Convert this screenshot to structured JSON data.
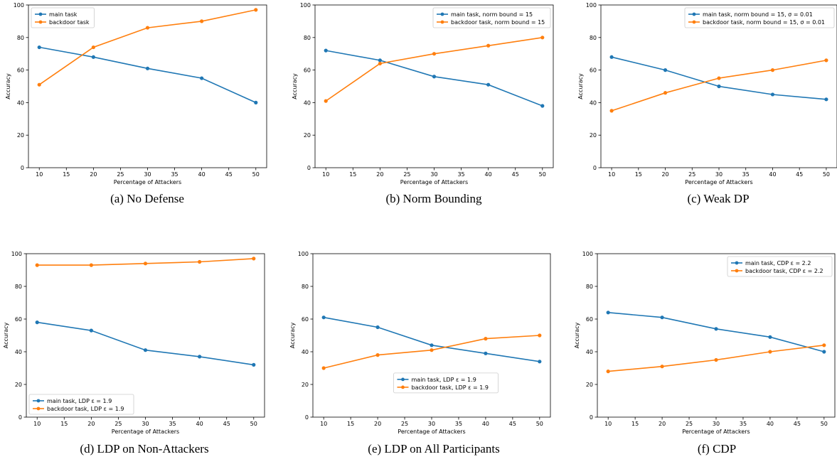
{
  "colors": {
    "main": "#1f77b4",
    "backdoor": "#ff7f0e"
  },
  "chart_data": [
    {
      "type": "line",
      "caption": "(a)  No Defense",
      "xlabel": "Percentage of Attackers",
      "ylabel": "Accuracy",
      "xlim": [
        8,
        52
      ],
      "ylim": [
        0,
        100
      ],
      "xticks": [
        10,
        15,
        20,
        25,
        30,
        35,
        40,
        45,
        50
      ],
      "yticks": [
        0,
        20,
        40,
        60,
        80,
        100
      ],
      "legend_position": "top-left",
      "x": [
        10,
        20,
        30,
        40,
        50
      ],
      "series": [
        {
          "name": "main task",
          "values": [
            74,
            68,
            61,
            55,
            40
          ]
        },
        {
          "name": "backdoor task",
          "values": [
            51,
            74,
            86,
            90,
            97
          ]
        }
      ]
    },
    {
      "type": "line",
      "caption": "(b)  Norm Bounding",
      "xlabel": "Percentage of Attackers",
      "ylabel": "Accuracy",
      "xlim": [
        8,
        52
      ],
      "ylim": [
        0,
        100
      ],
      "xticks": [
        10,
        15,
        20,
        25,
        30,
        35,
        40,
        45,
        50
      ],
      "yticks": [
        0,
        20,
        40,
        60,
        80,
        100
      ],
      "legend_position": "top-right",
      "x": [
        10,
        20,
        30,
        40,
        50
      ],
      "series": [
        {
          "name": "main task, norm bound = 15",
          "values": [
            72,
            66,
            56,
            51,
            38
          ]
        },
        {
          "name": "backdoor task, norm bound = 15",
          "values": [
            41,
            64,
            70,
            75,
            80
          ]
        }
      ]
    },
    {
      "type": "line",
      "caption": "(c)  Weak DP",
      "xlabel": "Percentage of Attackers",
      "ylabel": "Accuracy",
      "xlim": [
        8,
        52
      ],
      "ylim": [
        0,
        100
      ],
      "xticks": [
        10,
        15,
        20,
        25,
        30,
        35,
        40,
        45,
        50
      ],
      "yticks": [
        0,
        20,
        40,
        60,
        80,
        100
      ],
      "legend_position": "top-right",
      "x": [
        10,
        20,
        30,
        40,
        50
      ],
      "series": [
        {
          "name": "main task, norm bound = 15, σ = 0.01",
          "values": [
            68,
            60,
            50,
            45,
            42
          ]
        },
        {
          "name": "backdoor task, norm bound = 15, σ = 0.01",
          "values": [
            35,
            46,
            55,
            60,
            66
          ]
        }
      ]
    },
    {
      "type": "line",
      "caption": "(d)  LDP on Non-Attackers",
      "xlabel": "Percentage of Attackers",
      "ylabel": "Accuracy",
      "xlim": [
        8,
        52
      ],
      "ylim": [
        0,
        100
      ],
      "xticks": [
        10,
        15,
        20,
        25,
        30,
        35,
        40,
        45,
        50
      ],
      "yticks": [
        0,
        20,
        40,
        60,
        80,
        100
      ],
      "legend_position": "bottom-left",
      "x": [
        10,
        20,
        30,
        40,
        50
      ],
      "series": [
        {
          "name": "main task, LDP ε = 1.9",
          "values": [
            58,
            53,
            41,
            37,
            32
          ]
        },
        {
          "name": "backdoor task, LDP ε = 1.9",
          "values": [
            93,
            93,
            94,
            95,
            97
          ]
        }
      ]
    },
    {
      "type": "line",
      "caption": "(e)  LDP on All Participants",
      "xlabel": "Percentage of Attackers",
      "ylabel": "Accuracy",
      "xlim": [
        8,
        52
      ],
      "ylim": [
        0,
        100
      ],
      "xticks": [
        10,
        15,
        20,
        25,
        30,
        35,
        40,
        45,
        50
      ],
      "yticks": [
        0,
        20,
        40,
        60,
        80,
        100
      ],
      "legend_position": "lower-center",
      "x": [
        10,
        20,
        30,
        40,
        50
      ],
      "series": [
        {
          "name": "main task, LDP ε = 1.9",
          "values": [
            61,
            55,
            44,
            39,
            34
          ]
        },
        {
          "name": "backdoor task, LDP ε = 1.9",
          "values": [
            30,
            38,
            41,
            48,
            50
          ]
        }
      ]
    },
    {
      "type": "line",
      "caption": "(f)  CDP",
      "xlabel": "Percentage of Attackers",
      "ylabel": "Accuracy",
      "xlim": [
        8,
        52
      ],
      "ylim": [
        0,
        100
      ],
      "xticks": [
        10,
        15,
        20,
        25,
        30,
        35,
        40,
        45,
        50
      ],
      "yticks": [
        0,
        20,
        40,
        60,
        80,
        100
      ],
      "legend_position": "top-right",
      "x": [
        10,
        20,
        30,
        40,
        50
      ],
      "series": [
        {
          "name": "main task, CDP ε = 2.2",
          "values": [
            64,
            61,
            54,
            49,
            40
          ]
        },
        {
          "name": "backdoor task, CDP ε = 2.2",
          "values": [
            28,
            31,
            35,
            40,
            44
          ]
        }
      ]
    }
  ]
}
